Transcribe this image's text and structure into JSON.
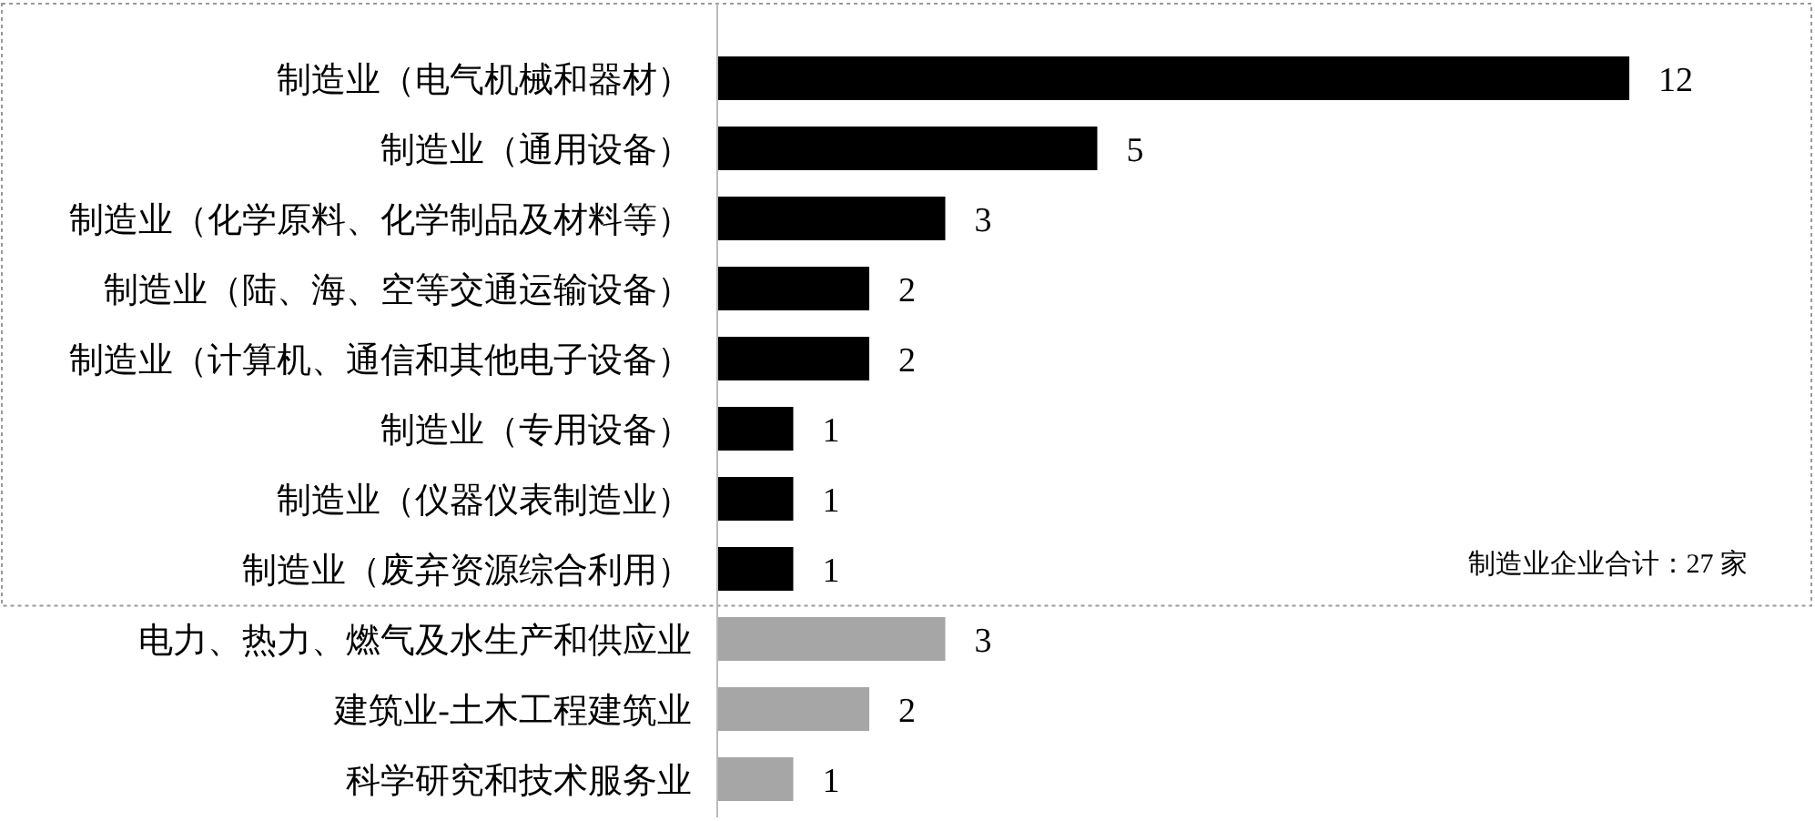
{
  "chart_data": {
    "type": "bar",
    "orientation": "horizontal",
    "data_labels": true,
    "categories": [
      "制造业（电气机械和器材）",
      "制造业（通用设备）",
      "制造业（化学原料、化学制品及材料等）",
      "制造业（陆、海、空等交通运输设备）",
      "制造业（计算机、通信和其他电子设备）",
      "制造业（专用设备）",
      "制造业（仪器仪表制造业）",
      "制造业（废弃资源综合利用）",
      "电力、热力、燃气及水生产和供应业",
      "建筑业-土木工程建筑业",
      "科学研究和技术服务业"
    ],
    "values": [
      12,
      5,
      3,
      2,
      2,
      1,
      1,
      1,
      3,
      2,
      1
    ],
    "colors": [
      "#000000",
      "#000000",
      "#000000",
      "#000000",
      "#000000",
      "#000000",
      "#000000",
      "#000000",
      "#a6a6a6",
      "#a6a6a6",
      "#a6a6a6"
    ],
    "annotations": [
      "制造业企业合计：27 家"
    ]
  }
}
